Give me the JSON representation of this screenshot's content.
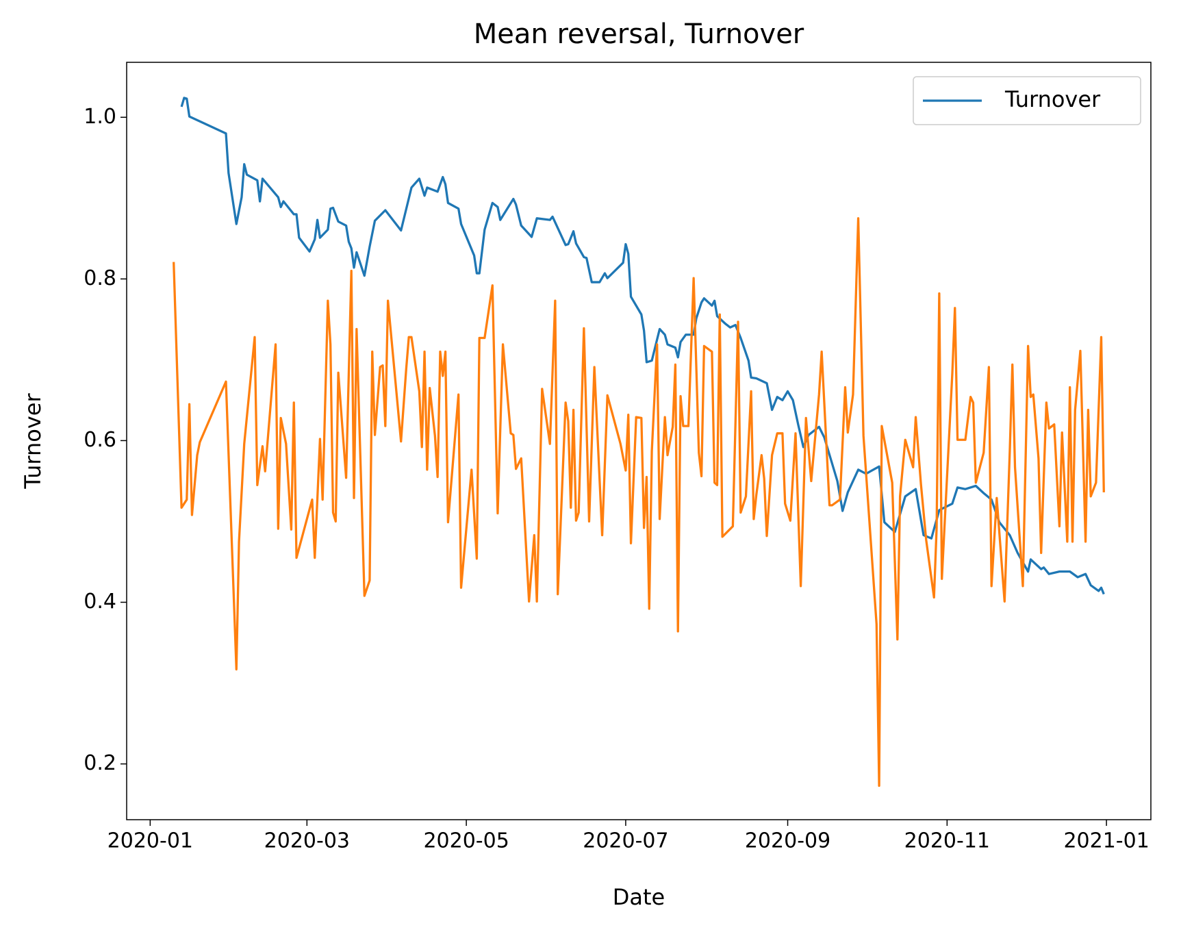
{
  "chart_data": {
    "type": "line",
    "title": "Mean reversal, Turnover",
    "xlabel": "Date",
    "ylabel": "Turnover",
    "xlim": [
      "2019-12-23",
      "2021-01-18"
    ],
    "xticks": [
      {
        "value": "2020-01-01",
        "label": "2020-01"
      },
      {
        "value": "2020-03-01",
        "label": "2020-03"
      },
      {
        "value": "2020-05-01",
        "label": "2020-05"
      },
      {
        "value": "2020-07-01",
        "label": "2020-07"
      },
      {
        "value": "2020-09-01",
        "label": "2020-09"
      },
      {
        "value": "2020-11-01",
        "label": "2020-11"
      },
      {
        "value": "2021-01-01",
        "label": "2021-01"
      }
    ],
    "ylim": [
      0.131,
      1.068
    ],
    "yticks": [
      0.2,
      0.4,
      0.6,
      0.8,
      {
        "value": 1,
        "label": "1.0"
      }
    ],
    "grid": false,
    "legend": "upper right",
    "series": [
      {
        "name": "Turnover",
        "color": "#1f77b4",
        "x": [
          "2020-01-13",
          "2020-01-14",
          "2020-01-15",
          "2020-01-16",
          "2020-01-30",
          "2020-01-31",
          "2020-02-03",
          "2020-02-05",
          "2020-02-06",
          "2020-02-07",
          "2020-02-11",
          "2020-02-12",
          "2020-02-13",
          "2020-02-19",
          "2020-02-20",
          "2020-02-21",
          "2020-02-25",
          "2020-02-26",
          "2020-02-27",
          "2020-03-02",
          "2020-03-04",
          "2020-03-05",
          "2020-03-06",
          "2020-03-09",
          "2020-03-10",
          "2020-03-11",
          "2020-03-13",
          "2020-03-16",
          "2020-03-17",
          "2020-03-18",
          "2020-03-19",
          "2020-03-20",
          "2020-03-23",
          "2020-03-25",
          "2020-03-27",
          "2020-03-31",
          "2020-04-06",
          "2020-04-10",
          "2020-04-13",
          "2020-04-15",
          "2020-04-16",
          "2020-04-20",
          "2020-04-22",
          "2020-04-23",
          "2020-04-24",
          "2020-04-28",
          "2020-04-29",
          "2020-05-04",
          "2020-05-05",
          "2020-05-06",
          "2020-05-08",
          "2020-05-11",
          "2020-05-13",
          "2020-05-14",
          "2020-05-19",
          "2020-05-20",
          "2020-05-22",
          "2020-05-26",
          "2020-05-28",
          "2020-06-02",
          "2020-06-03",
          "2020-06-08",
          "2020-06-09",
          "2020-06-11",
          "2020-06-12",
          "2020-06-15",
          "2020-06-16",
          "2020-06-18",
          "2020-06-21",
          "2020-06-23",
          "2020-06-24",
          "2020-06-30",
          "2020-07-01",
          "2020-07-02",
          "2020-07-03",
          "2020-07-07",
          "2020-07-08",
          "2020-07-09",
          "2020-07-11",
          "2020-07-14",
          "2020-07-16",
          "2020-07-17",
          "2020-07-20",
          "2020-07-21",
          "2020-07-22",
          "2020-07-24",
          "2020-07-27",
          "2020-07-28",
          "2020-07-30",
          "2020-07-31",
          "2020-08-03",
          "2020-08-04",
          "2020-08-05",
          "2020-08-08",
          "2020-08-10",
          "2020-08-12",
          "2020-08-14",
          "2020-08-17",
          "2020-08-18",
          "2020-08-20",
          "2020-08-24",
          "2020-08-26",
          "2020-08-28",
          "2020-08-30",
          "2020-09-01",
          "2020-09-03",
          "2020-09-05",
          "2020-09-07",
          "2020-09-09",
          "2020-09-13",
          "2020-09-15",
          "2020-09-20",
          "2020-09-22",
          "2020-09-24",
          "2020-09-28",
          "2020-10-01",
          "2020-10-06",
          "2020-10-08",
          "2020-10-12",
          "2020-10-16",
          "2020-10-20",
          "2020-10-23",
          "2020-10-26",
          "2020-10-29",
          "2020-11-03",
          "2020-11-05",
          "2020-11-08",
          "2020-11-12",
          "2020-11-15",
          "2020-11-18",
          "2020-11-21",
          "2020-11-25",
          "2020-11-28",
          "2020-12-02",
          "2020-12-03",
          "2020-12-07",
          "2020-12-08",
          "2020-12-10",
          "2020-12-14",
          "2020-12-18",
          "2020-12-21",
          "2020-12-24",
          "2020-12-26",
          "2020-12-29",
          "2020-12-30",
          "2020-12-31"
        ],
        "values": [
          1.013,
          1.024,
          1.023,
          1.001,
          0.98,
          0.931,
          0.868,
          0.901,
          0.942,
          0.929,
          0.922,
          0.896,
          0.924,
          0.901,
          0.889,
          0.896,
          0.88,
          0.88,
          0.851,
          0.834,
          0.849,
          0.873,
          0.851,
          0.861,
          0.887,
          0.888,
          0.871,
          0.866,
          0.846,
          0.838,
          0.814,
          0.833,
          0.804,
          0.84,
          0.872,
          0.885,
          0.86,
          0.913,
          0.924,
          0.903,
          0.913,
          0.908,
          0.926,
          0.917,
          0.894,
          0.887,
          0.868,
          0.829,
          0.807,
          0.807,
          0.861,
          0.894,
          0.889,
          0.873,
          0.899,
          0.892,
          0.866,
          0.852,
          0.875,
          0.873,
          0.877,
          0.842,
          0.843,
          0.859,
          0.844,
          0.827,
          0.826,
          0.796,
          0.796,
          0.807,
          0.801,
          0.82,
          0.843,
          0.831,
          0.778,
          0.756,
          0.736,
          0.697,
          0.699,
          0.738,
          0.731,
          0.719,
          0.715,
          0.703,
          0.722,
          0.731,
          0.731,
          0.751,
          0.771,
          0.776,
          0.767,
          0.773,
          0.754,
          0.745,
          0.74,
          0.743,
          0.727,
          0.699,
          0.678,
          0.677,
          0.671,
          0.638,
          0.654,
          0.65,
          0.661,
          0.65,
          0.62,
          0.592,
          0.607,
          0.617,
          0.604,
          0.55,
          0.513,
          0.536,
          0.564,
          0.559,
          0.568,
          0.499,
          0.487,
          0.531,
          0.54,
          0.483,
          0.479,
          0.514,
          0.522,
          0.542,
          0.54,
          0.544,
          0.535,
          0.527,
          0.499,
          0.483,
          0.461,
          0.438,
          0.453,
          0.441,
          0.443,
          0.435,
          0.438,
          0.438,
          0.431,
          0.435,
          0.421,
          0.414,
          0.418,
          0.41
        ]
      },
      {
        "color": "#ff7f0e",
        "x": [
          "2020-01-10",
          "2020-01-13",
          "2020-01-15",
          "2020-01-16",
          "2020-01-17",
          "2020-01-19",
          "2020-01-20",
          "2020-01-30",
          "2020-02-03",
          "2020-02-04",
          "2020-02-06",
          "2020-02-10",
          "2020-02-11",
          "2020-02-13",
          "2020-02-14",
          "2020-02-18",
          "2020-02-19",
          "2020-02-20",
          "2020-02-22",
          "2020-02-24",
          "2020-02-25",
          "2020-02-26",
          "2020-03-03",
          "2020-03-04",
          "2020-03-06",
          "2020-03-07",
          "2020-03-09",
          "2020-03-10",
          "2020-03-11",
          "2020-03-12",
          "2020-03-13",
          "2020-03-16",
          "2020-03-18",
          "2020-03-19",
          "2020-03-20",
          "2020-03-23",
          "2020-03-25",
          "2020-03-26",
          "2020-03-27",
          "2020-03-29",
          "2020-03-30",
          "2020-03-31",
          "2020-04-01",
          "2020-04-06",
          "2020-04-08",
          "2020-04-09",
          "2020-04-10",
          "2020-04-13",
          "2020-04-14",
          "2020-04-15",
          "2020-04-16",
          "2020-04-17",
          "2020-04-19",
          "2020-04-20",
          "2020-04-21",
          "2020-04-22",
          "2020-04-23",
          "2020-04-24",
          "2020-04-28",
          "2020-04-29",
          "2020-05-03",
          "2020-05-05",
          "2020-05-06",
          "2020-05-08",
          "2020-05-11",
          "2020-05-13",
          "2020-05-15",
          "2020-05-18",
          "2020-05-19",
          "2020-05-20",
          "2020-05-22",
          "2020-05-25",
          "2020-05-27",
          "2020-05-28",
          "2020-05-30",
          "2020-06-02",
          "2020-06-04",
          "2020-06-05",
          "2020-06-08",
          "2020-06-09",
          "2020-06-10",
          "2020-06-11",
          "2020-06-12",
          "2020-06-13",
          "2020-06-15",
          "2020-06-17",
          "2020-06-19",
          "2020-06-22",
          "2020-06-24",
          "2020-06-29",
          "2020-07-01",
          "2020-07-02",
          "2020-07-03",
          "2020-07-05",
          "2020-07-07",
          "2020-07-08",
          "2020-07-09",
          "2020-07-10",
          "2020-07-11",
          "2020-07-13",
          "2020-07-14",
          "2020-07-16",
          "2020-07-17",
          "2020-07-19",
          "2020-07-20",
          "2020-07-21",
          "2020-07-22",
          "2020-07-23",
          "2020-07-25",
          "2020-07-27",
          "2020-07-29",
          "2020-07-30",
          "2020-07-31",
          "2020-08-03",
          "2020-08-04",
          "2020-08-05",
          "2020-08-06",
          "2020-08-07",
          "2020-08-11",
          "2020-08-13",
          "2020-08-14",
          "2020-08-16",
          "2020-08-18",
          "2020-08-19",
          "2020-08-20",
          "2020-08-22",
          "2020-08-23",
          "2020-08-24",
          "2020-08-26",
          "2020-08-28",
          "2020-08-30",
          "2020-08-31",
          "2020-09-02",
          "2020-09-04",
          "2020-09-06",
          "2020-09-08",
          "2020-09-10",
          "2020-09-13",
          "2020-09-14",
          "2020-09-17",
          "2020-09-18",
          "2020-09-21",
          "2020-09-23",
          "2020-09-24",
          "2020-09-26",
          "2020-09-28",
          "2020-09-30",
          "2020-10-05",
          "2020-10-06",
          "2020-10-07",
          "2020-10-11",
          "2020-10-13",
          "2020-10-14",
          "2020-10-16",
          "2020-10-19",
          "2020-10-20",
          "2020-10-22",
          "2020-10-24",
          "2020-10-27",
          "2020-10-28",
          "2020-10-29",
          "2020-10-30",
          "2020-11-03",
          "2020-11-04",
          "2020-11-05",
          "2020-11-08",
          "2020-11-10",
          "2020-11-11",
          "2020-11-12",
          "2020-11-15",
          "2020-11-17",
          "2020-11-18",
          "2020-11-20",
          "2020-11-23",
          "2020-11-25",
          "2020-11-26",
          "2020-11-27",
          "2020-11-30",
          "2020-12-02",
          "2020-12-03",
          "2020-12-04",
          "2020-12-06",
          "2020-12-07",
          "2020-12-09",
          "2020-12-10",
          "2020-12-12",
          "2020-12-14",
          "2020-12-15",
          "2020-12-17",
          "2020-12-18",
          "2020-12-19",
          "2020-12-20",
          "2020-12-22",
          "2020-12-24",
          "2020-12-25",
          "2020-12-26",
          "2020-12-28",
          "2020-12-30",
          "2020-12-31"
        ],
        "values": [
          0.821,
          0.517,
          0.527,
          0.645,
          0.508,
          0.582,
          0.598,
          0.673,
          0.317,
          0.475,
          0.596,
          0.728,
          0.545,
          0.593,
          0.562,
          0.719,
          0.491,
          0.628,
          0.596,
          0.49,
          0.647,
          0.455,
          0.527,
          0.455,
          0.602,
          0.527,
          0.773,
          0.719,
          0.511,
          0.5,
          0.684,
          0.554,
          0.81,
          0.529,
          0.738,
          0.408,
          0.427,
          0.71,
          0.607,
          0.691,
          0.693,
          0.618,
          0.773,
          0.599,
          0.689,
          0.728,
          0.728,
          0.661,
          0.592,
          0.71,
          0.564,
          0.665,
          0.606,
          0.555,
          0.71,
          0.68,
          0.71,
          0.499,
          0.657,
          0.418,
          0.564,
          0.454,
          0.727,
          0.727,
          0.792,
          0.51,
          0.719,
          0.609,
          0.607,
          0.565,
          0.578,
          0.401,
          0.483,
          0.401,
          0.664,
          0.596,
          0.773,
          0.41,
          0.647,
          0.624,
          0.517,
          0.638,
          0.501,
          0.511,
          0.739,
          0.5,
          0.691,
          0.483,
          0.656,
          0.596,
          0.563,
          0.632,
          0.473,
          0.629,
          0.628,
          0.492,
          0.555,
          0.392,
          0.587,
          0.719,
          0.503,
          0.629,
          0.582,
          0.617,
          0.694,
          0.364,
          0.655,
          0.618,
          0.618,
          0.801,
          0.585,
          0.556,
          0.717,
          0.71,
          0.548,
          0.545,
          0.756,
          0.481,
          0.494,
          0.747,
          0.511,
          0.531,
          0.661,
          0.503,
          0.533,
          0.582,
          0.553,
          0.482,
          0.582,
          0.609,
          0.609,
          0.522,
          0.501,
          0.609,
          0.42,
          0.628,
          0.55,
          0.657,
          0.71,
          0.52,
          0.52,
          0.527,
          0.666,
          0.61,
          0.657,
          0.875,
          0.606,
          0.373,
          0.173,
          0.618,
          0.548,
          0.354,
          0.531,
          0.601,
          0.567,
          0.629,
          0.546,
          0.477,
          0.406,
          0.492,
          0.782,
          0.429,
          0.683,
          0.764,
          0.601,
          0.601,
          0.654,
          0.647,
          0.548,
          0.585,
          0.691,
          0.42,
          0.529,
          0.401,
          0.587,
          0.694,
          0.567,
          0.42,
          0.717,
          0.654,
          0.657,
          0.578,
          0.461,
          0.647,
          0.615,
          0.62,
          0.494,
          0.61,
          0.475,
          0.666,
          0.475,
          0.638,
          0.711,
          0.475,
          0.638,
          0.531,
          0.548,
          0.728,
          0.536
        ]
      }
    ]
  }
}
